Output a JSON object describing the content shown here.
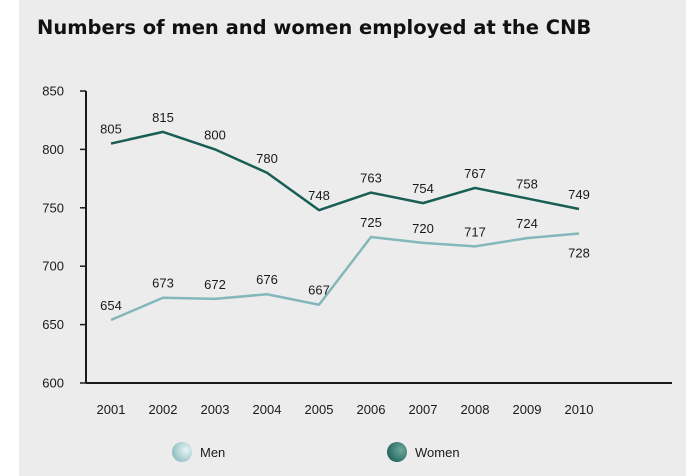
{
  "chart_data": {
    "type": "line",
    "title": "Numbers of men and women employed at the CNB",
    "xlabel": "",
    "ylabel": "",
    "x": [
      "2001",
      "2002",
      "2003",
      "2004",
      "2005",
      "2006",
      "2007",
      "2008",
      "2009",
      "2010"
    ],
    "ylim": [
      600,
      850
    ],
    "yticks": [
      600,
      650,
      700,
      750,
      800,
      850
    ],
    "grid": false,
    "legend_position": "bottom",
    "series": [
      {
        "name": "Men",
        "color": "#84b7ba",
        "values": [
          654,
          673,
          672,
          676,
          667,
          725,
          720,
          717,
          724,
          728
        ]
      },
      {
        "name": "Women",
        "color": "#185e55",
        "values": [
          805,
          815,
          800,
          780,
          748,
          763,
          754,
          767,
          758,
          749
        ]
      }
    ]
  }
}
